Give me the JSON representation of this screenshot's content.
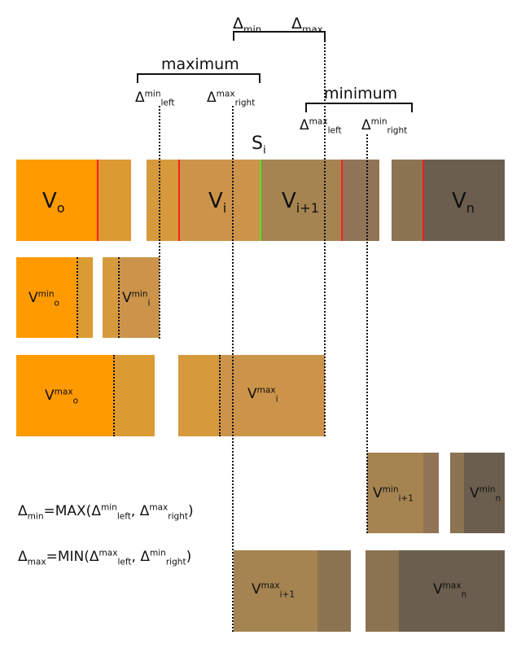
{
  "colors": {
    "orange": "#FF9A00",
    "orange2": "#DC9A32",
    "tan": "#CC944A",
    "tan2": "#A58452",
    "brown": "#8C7452",
    "gray": "#6B5E4E",
    "red": "#FF1E1E",
    "green": "#5DDC32"
  },
  "top": {
    "delta": "Δ",
    "min_sub": "min",
    "max_sub": "max"
  },
  "brackets": {
    "maximum": "maximum",
    "minimum": "minimum"
  },
  "labels": {
    "delta": "Δ",
    "min": "min",
    "max": "max",
    "left": "left",
    "right": "right",
    "s": "S",
    "i": "i",
    "v": "V",
    "v0_sub": "o",
    "vi_sub": "i",
    "vi1_sub": "i+1",
    "vn_sub": "n",
    "vmin0_sub": "o",
    "vmini_sub": "i",
    "vmax0_sub": "o",
    "vmaxi_sub": "i",
    "vmini1_sub": "i+1",
    "vminn_sub": "n",
    "vmaxi1_sub": "i+1",
    "vmaxn_sub": "n"
  },
  "formulas": {
    "f1_eq": "=MAX(",
    "f1_sep": ", ",
    "f1_end": ")",
    "f2_eq": "=MIN(",
    "f2_sep": ", ",
    "f2_end": ")"
  }
}
